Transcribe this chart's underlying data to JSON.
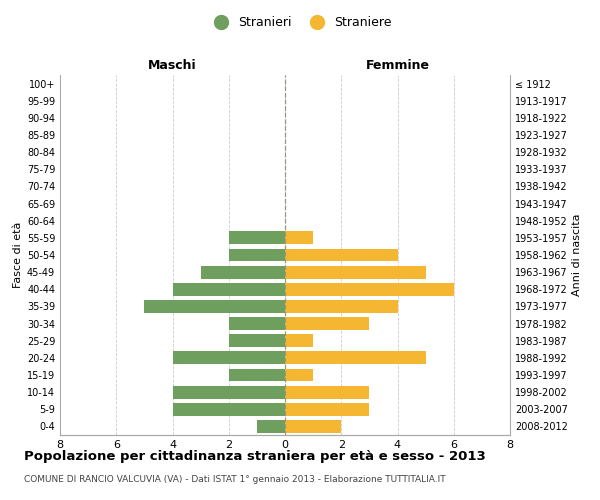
{
  "age_groups": [
    "100+",
    "95-99",
    "90-94",
    "85-89",
    "80-84",
    "75-79",
    "70-74",
    "65-69",
    "60-64",
    "55-59",
    "50-54",
    "45-49",
    "40-44",
    "35-39",
    "30-34",
    "25-29",
    "20-24",
    "15-19",
    "10-14",
    "5-9",
    "0-4"
  ],
  "birth_years": [
    "≤ 1912",
    "1913-1917",
    "1918-1922",
    "1923-1927",
    "1928-1932",
    "1933-1937",
    "1938-1942",
    "1943-1947",
    "1948-1952",
    "1953-1957",
    "1958-1962",
    "1963-1967",
    "1968-1972",
    "1973-1977",
    "1978-1982",
    "1983-1987",
    "1988-1992",
    "1993-1997",
    "1998-2002",
    "2003-2007",
    "2008-2012"
  ],
  "maschi": [
    0,
    0,
    0,
    0,
    0,
    0,
    0,
    0,
    0,
    2,
    2,
    3,
    4,
    5,
    2,
    2,
    4,
    2,
    4,
    4,
    1
  ],
  "femmine": [
    0,
    0,
    0,
    0,
    0,
    0,
    0,
    0,
    0,
    1,
    4,
    5,
    6,
    4,
    3,
    1,
    5,
    1,
    3,
    3,
    2
  ],
  "color_maschi": "#6e9f5e",
  "color_femmine": "#f5b731",
  "title": "Popolazione per cittadinanza straniera per età e sesso - 2013",
  "subtitle": "COMUNE DI RANCIO VALCUVIA (VA) - Dati ISTAT 1° gennaio 2013 - Elaborazione TUTTITALIA.IT",
  "xlabel_left": "Maschi",
  "xlabel_right": "Femmine",
  "ylabel_left": "Fasce di età",
  "ylabel_right": "Anni di nascita",
  "legend_maschi": "Stranieri",
  "legend_femmine": "Straniere",
  "xlim": 8,
  "bg_color": "#ffffff",
  "grid_color": "#cccccc",
  "bar_height": 0.75
}
